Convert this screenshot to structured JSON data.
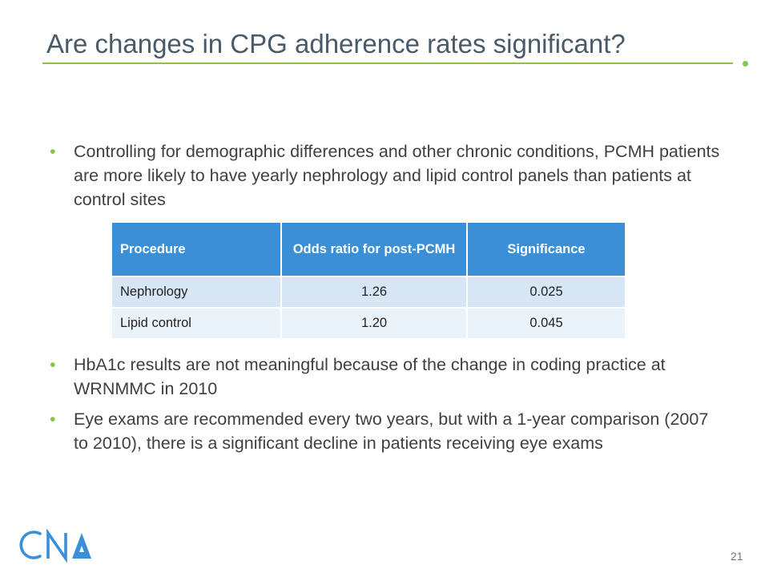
{
  "slide": {
    "title": "Are changes in CPG adherence rates significant?",
    "accent_color": "#8bc34a",
    "page_number": "21"
  },
  "bullets": [
    "Controlling for demographic differences and other chronic conditions, PCMH patients are more likely to have yearly nephrology and lipid control panels than patients at control sites",
    "HbA1c results are not meaningful because of the change in coding practice at WRNMMC in 2010",
    "Eye exams are recommended every two years, but with a 1-year comparison (2007 to 2010), there is a significant decline in patients receiving eye exams"
  ],
  "table": {
    "header_color": "#3a8fd6",
    "headers": [
      "Procedure",
      "Odds ratio for post-PCMH",
      "Significance"
    ],
    "rows": [
      [
        "Nephrology",
        "1.26",
        "0.025"
      ],
      [
        "Lipid control",
        "1.20",
        "0.045"
      ]
    ]
  },
  "logo": {
    "text": "CNA",
    "color": "#3a8fd6"
  }
}
